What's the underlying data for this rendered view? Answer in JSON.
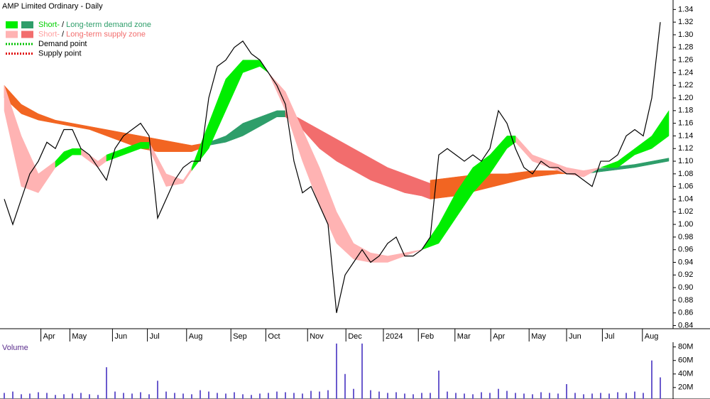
{
  "chart_data": [
    {
      "type": "line",
      "title": "AMP Limited Ordinary - Daily",
      "color": "#000000",
      "legend": [
        {
          "swatches": [
            "#00ee00",
            "#2e9e6a"
          ],
          "parts": [
            {
              "text": "Short-",
              "color": "#00d000"
            },
            {
              "text": " / ",
              "color": "#000000"
            },
            {
              "text": "Long-term demand zone",
              "color": "#2e9e6a"
            }
          ]
        },
        {
          "swatches": [
            "#ffb3b3",
            "#f26d6d"
          ],
          "parts": [
            {
              "text": "Short-",
              "color": "#ff9f9f"
            },
            {
              "text": " / ",
              "color": "#000000"
            },
            {
              "text": "Long-term supply zone",
              "color": "#f26d6d"
            }
          ]
        },
        {
          "dotted": "#00c000",
          "parts": [
            {
              "text": "Demand point",
              "color": "#000000"
            }
          ]
        },
        {
          "dotted": "#e00000",
          "parts": [
            {
              "text": "Supply point",
              "color": "#000000"
            }
          ]
        }
      ],
      "x": [
        0,
        1,
        2,
        3,
        4,
        5,
        6,
        7,
        8,
        9,
        10,
        11,
        12,
        13,
        14,
        15,
        16,
        17,
        18,
        19,
        20,
        21,
        22,
        23,
        24,
        25,
        26,
        27,
        28,
        29,
        30,
        31,
        32,
        33,
        34,
        35,
        36,
        37,
        38,
        39,
        40,
        41,
        42,
        43,
        44,
        45,
        46,
        47,
        48,
        49,
        50,
        51,
        52,
        53,
        54,
        55,
        56,
        57,
        58,
        59,
        60,
        61,
        62,
        63,
        64,
        65,
        66,
        67,
        68,
        69,
        70,
        71,
        72,
        73,
        74,
        75,
        76,
        77
      ],
      "values": [
        1.04,
        1.0,
        1.04,
        1.08,
        1.1,
        1.13,
        1.12,
        1.15,
        1.15,
        1.12,
        1.11,
        1.09,
        1.07,
        1.12,
        1.14,
        1.15,
        1.16,
        1.14,
        1.01,
        1.04,
        1.07,
        1.09,
        1.1,
        1.1,
        1.2,
        1.25,
        1.26,
        1.28,
        1.29,
        1.27,
        1.26,
        1.24,
        1.22,
        1.19,
        1.1,
        1.05,
        1.06,
        1.03,
        1.0,
        0.86,
        0.92,
        0.94,
        0.96,
        0.94,
        0.95,
        0.97,
        0.98,
        0.95,
        0.95,
        0.96,
        0.98,
        1.11,
        1.12,
        1.11,
        1.1,
        1.11,
        1.1,
        1.12,
        1.18,
        1.16,
        1.12,
        1.09,
        1.08,
        1.1,
        1.09,
        1.09,
        1.08,
        1.08,
        1.07,
        1.06,
        1.1,
        1.1,
        1.11,
        1.14,
        1.15,
        1.14,
        1.2,
        1.32
      ],
      "zones": [
        {
          "color": "#f26522",
          "x": [
            0,
            2,
            4,
            6,
            8,
            10,
            12,
            14,
            16,
            18,
            20,
            22,
            24
          ],
          "upper": [
            1.22,
            1.19,
            1.175,
            1.165,
            1.16,
            1.155,
            1.15,
            1.145,
            1.14,
            1.135,
            1.13,
            1.125,
            1.13
          ],
          "lower": [
            1.2,
            1.175,
            1.165,
            1.16,
            1.155,
            1.15,
            1.14,
            1.13,
            1.12,
            1.115,
            1.115,
            1.115,
            1.125
          ]
        },
        {
          "color": "#2e9e6a",
          "x": [
            24,
            26,
            28,
            30,
            32,
            33
          ],
          "upper": [
            1.13,
            1.14,
            1.16,
            1.17,
            1.18,
            1.18
          ],
          "lower": [
            1.125,
            1.13,
            1.14,
            1.155,
            1.17,
            1.17
          ]
        },
        {
          "color": "#f26d6d",
          "x": [
            33,
            35,
            37,
            39,
            41,
            43,
            45,
            47,
            49,
            50
          ],
          "upper": [
            1.18,
            1.165,
            1.15,
            1.135,
            1.12,
            1.105,
            1.09,
            1.08,
            1.07,
            1.065
          ],
          "lower": [
            1.17,
            1.15,
            1.12,
            1.1,
            1.085,
            1.07,
            1.06,
            1.05,
            1.045,
            1.04
          ]
        },
        {
          "color": "#f26522",
          "x": [
            50,
            53,
            56,
            59,
            62,
            65,
            68
          ],
          "upper": [
            1.07,
            1.075,
            1.08,
            1.08,
            1.085,
            1.085,
            1.085
          ],
          "lower": [
            1.04,
            1.045,
            1.055,
            1.065,
            1.075,
            1.08,
            1.08
          ]
        },
        {
          "color": "#2e9e6a",
          "x": [
            68,
            71,
            74,
            76,
            78
          ],
          "upper": [
            1.085,
            1.09,
            1.095,
            1.1,
            1.105
          ],
          "lower": [
            1.08,
            1.085,
            1.09,
            1.095,
            1.1
          ]
        },
        {
          "color": "#ffb3b3",
          "x": [
            0,
            2,
            4,
            6
          ],
          "upper": [
            1.22,
            1.14,
            1.08,
            1.1
          ],
          "lower": [
            1.18,
            1.06,
            1.05,
            1.09
          ]
        },
        {
          "color": "#ffb3b3",
          "x": [
            9,
            11,
            12
          ],
          "upper": [
            1.12,
            1.1,
            1.11
          ],
          "lower": [
            1.11,
            1.09,
            1.1
          ]
        },
        {
          "color": "#ffb3b3",
          "x": [
            17,
            19,
            21,
            22
          ],
          "upper": [
            1.13,
            1.08,
            1.07,
            1.09
          ],
          "lower": [
            1.12,
            1.06,
            1.065,
            1.085
          ]
        },
        {
          "color": "#ffb3b3",
          "x": [
            31,
            33,
            35,
            37,
            39,
            41,
            43,
            45,
            47,
            49
          ],
          "upper": [
            1.24,
            1.21,
            1.15,
            1.09,
            1.02,
            0.97,
            0.955,
            0.95,
            0.955,
            0.96
          ],
          "lower": [
            1.24,
            1.18,
            1.1,
            1.03,
            0.97,
            0.945,
            0.94,
            0.94,
            0.95,
            0.96
          ]
        },
        {
          "color": "#ffb3b3",
          "x": [
            60,
            62,
            64,
            66,
            68,
            70
          ],
          "upper": [
            1.14,
            1.11,
            1.1,
            1.09,
            1.085,
            1.09
          ],
          "lower": [
            1.13,
            1.1,
            1.09,
            1.08,
            1.075,
            1.09
          ]
        },
        {
          "color": "#00ee00",
          "x": [
            6,
            7,
            8,
            9
          ],
          "upper": [
            1.1,
            1.115,
            1.12,
            1.12
          ],
          "lower": [
            1.09,
            1.1,
            1.11,
            1.11
          ]
        },
        {
          "color": "#00ee00",
          "x": [
            12,
            14,
            16,
            17
          ],
          "upper": [
            1.11,
            1.12,
            1.13,
            1.13
          ],
          "lower": [
            1.1,
            1.11,
            1.12,
            1.12
          ]
        },
        {
          "color": "#00ee00",
          "x": [
            22,
            24,
            26,
            28,
            30,
            31
          ],
          "upper": [
            1.09,
            1.16,
            1.23,
            1.26,
            1.26,
            1.24
          ],
          "lower": [
            1.085,
            1.12,
            1.18,
            1.24,
            1.25,
            1.24
          ]
        },
        {
          "color": "#00ee00",
          "x": [
            49,
            51,
            53,
            55,
            57,
            59,
            60
          ],
          "upper": [
            0.96,
            1.0,
            1.05,
            1.09,
            1.11,
            1.14,
            1.14
          ],
          "lower": [
            0.96,
            0.97,
            1.01,
            1.05,
            1.08,
            1.12,
            1.13
          ]
        },
        {
          "color": "#00ee00",
          "x": [
            70,
            72,
            74,
            76,
            77,
            78
          ],
          "upper": [
            1.09,
            1.1,
            1.12,
            1.14,
            1.16,
            1.18
          ],
          "lower": [
            1.09,
            1.09,
            1.11,
            1.12,
            1.13,
            1.14
          ]
        }
      ],
      "xlim": [
        -0.5,
        78.5
      ],
      "ylim": [
        0.835,
        1.355
      ],
      "xticks": [
        {
          "value": 4.3,
          "label": "Apr"
        },
        {
          "value": 7.7,
          "label": "May"
        },
        {
          "value": 12.7,
          "label": "Jun"
        },
        {
          "value": 16.8,
          "label": "Jul"
        },
        {
          "value": 21.4,
          "label": "Aug"
        },
        {
          "value": 26.6,
          "label": "Sep"
        },
        {
          "value": 30.7,
          "label": "Oct"
        },
        {
          "value": 35.6,
          "label": "Nov"
        },
        {
          "value": 40.1,
          "label": "Dec"
        },
        {
          "value": 44.5,
          "label": "2024"
        },
        {
          "value": 48.6,
          "label": "Feb"
        },
        {
          "value": 52.9,
          "label": "Mar"
        },
        {
          "value": 57.1,
          "label": "Apr"
        },
        {
          "value": 61.6,
          "label": "May"
        },
        {
          "value": 66,
          "label": "Jun"
        },
        {
          "value": 70.2,
          "label": "Jul"
        },
        {
          "value": 74.9,
          "label": "Aug"
        }
      ],
      "yticks": [
        0.84,
        0.86,
        0.88,
        {
          "value": 0.9,
          "label": "0.90"
        },
        0.92,
        0.94,
        0.96,
        0.98,
        {
          "value": 1,
          "label": "1.00"
        },
        1.02,
        1.04,
        1.06,
        1.08,
        {
          "value": 1.1,
          "label": "1.10"
        },
        1.12,
        1.14,
        1.16,
        1.18,
        {
          "value": 1.2,
          "label": "1.20"
        },
        1.22,
        1.24,
        1.26,
        1.28,
        {
          "value": 1.3,
          "label": "1.30"
        },
        1.32,
        1.34
      ]
    },
    {
      "type": "bar",
      "title": "Volume",
      "color": "#6a5acd",
      "x": [
        0,
        1,
        2,
        3,
        4,
        5,
        6,
        7,
        8,
        9,
        10,
        11,
        12,
        13,
        14,
        15,
        16,
        17,
        18,
        19,
        20,
        21,
        22,
        23,
        24,
        25,
        26,
        27,
        28,
        29,
        30,
        31,
        32,
        33,
        34,
        35,
        36,
        37,
        38,
        39,
        40,
        41,
        42,
        43,
        44,
        45,
        46,
        47,
        48,
        49,
        50,
        51,
        52,
        53,
        54,
        55,
        56,
        57,
        58,
        59,
        60,
        61,
        62,
        63,
        64,
        65,
        66,
        67,
        68,
        69,
        70,
        71,
        72,
        73,
        74,
        75,
        76,
        77
      ],
      "values": [
        12,
        14,
        10,
        11,
        13,
        12,
        9,
        10,
        11,
        12,
        10,
        9,
        50,
        14,
        12,
        11,
        13,
        10,
        30,
        14,
        12,
        11,
        10,
        16,
        14,
        12,
        11,
        13,
        10,
        9,
        11,
        12,
        14,
        13,
        12,
        11,
        15,
        14,
        16,
        85,
        40,
        18,
        85,
        16,
        14,
        12,
        13,
        11,
        10,
        12,
        12,
        45,
        14,
        12,
        11,
        10,
        13,
        12,
        18,
        15,
        12,
        11,
        10,
        13,
        12,
        11,
        25,
        12,
        10,
        11,
        12,
        11,
        13,
        12,
        14,
        12,
        60,
        35
      ],
      "xlim": [
        -0.5,
        78.5
      ],
      "ylim": [
        3,
        87
      ],
      "yticks": [
        {
          "value": 20,
          "label": "20M"
        },
        {
          "value": 40,
          "label": "40M"
        },
        {
          "value": 60,
          "label": "60M"
        },
        {
          "value": 80,
          "label": "80M"
        }
      ]
    }
  ]
}
